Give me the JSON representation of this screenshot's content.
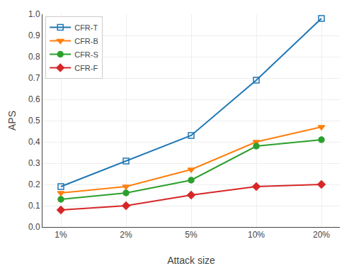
{
  "chart_data": {
    "type": "line",
    "categories": [
      "1%",
      "2%",
      "5%",
      "10%",
      "20%"
    ],
    "series": [
      {
        "name": "CFR-T",
        "color": "#1f77b4",
        "marker": "square-open",
        "line_style": "solid",
        "values": [
          0.19,
          0.31,
          0.43,
          0.69,
          0.98
        ]
      },
      {
        "name": "CFR-B",
        "color": "#ff7f0e",
        "marker": "triangle-down",
        "line_style": "solid",
        "values": [
          0.16,
          0.19,
          0.27,
          0.4,
          0.47
        ]
      },
      {
        "name": "CFR-S",
        "color": "#2ca02c",
        "marker": "circle",
        "line_style": "solid",
        "values": [
          0.13,
          0.16,
          0.22,
          0.38,
          0.41
        ]
      },
      {
        "name": "CFR-F",
        "color": "#d62728",
        "marker": "diamond",
        "line_style": "solid",
        "values": [
          0.08,
          0.1,
          0.15,
          0.19,
          0.2
        ]
      }
    ],
    "xlabel": "Attack size",
    "ylabel": "APS",
    "ylim": [
      0.0,
      1.0
    ],
    "yticks": [
      {
        "value": 0,
        "label": "0.0"
      },
      0.1,
      0.2,
      0.3,
      0.4,
      0.5,
      0.6,
      0.7,
      0.8,
      0.9,
      {
        "value": 1,
        "label": "1.0"
      }
    ],
    "grid": true,
    "legend": "upper left"
  }
}
